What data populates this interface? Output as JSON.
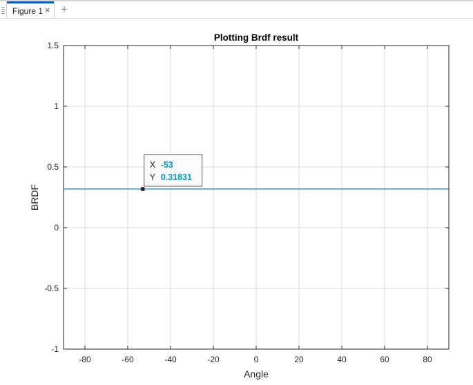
{
  "window": {
    "tab_label": "Figure 1",
    "close_glyph": "×",
    "add_glyph": "+"
  },
  "colors": {
    "series": "#0072bd",
    "grid": "#dcdcdc",
    "axis": "#262626",
    "datatip_value": "#0a94d8",
    "tab_accent": "#0e5ea8"
  },
  "chart_data": {
    "type": "line",
    "title": "Plotting Brdf result",
    "xlabel": "Angle",
    "ylabel": "BRDF",
    "xlim": [
      -90,
      90
    ],
    "ylim": [
      -1,
      1.5
    ],
    "xticks": [
      -80,
      -60,
      -40,
      -20,
      0,
      20,
      40,
      60,
      80
    ],
    "yticks": [
      -1,
      -0.5,
      0,
      0.5,
      1,
      1.5
    ],
    "grid": true,
    "series": [
      {
        "x": [
          -90,
          90
        ],
        "y": [
          0.31831,
          0.31831
        ]
      }
    ],
    "datatip": {
      "x": -53,
      "y": 0.31831,
      "x_label": "X",
      "y_label": "Y",
      "x_text": "-53",
      "y_text": "0.31831"
    }
  }
}
